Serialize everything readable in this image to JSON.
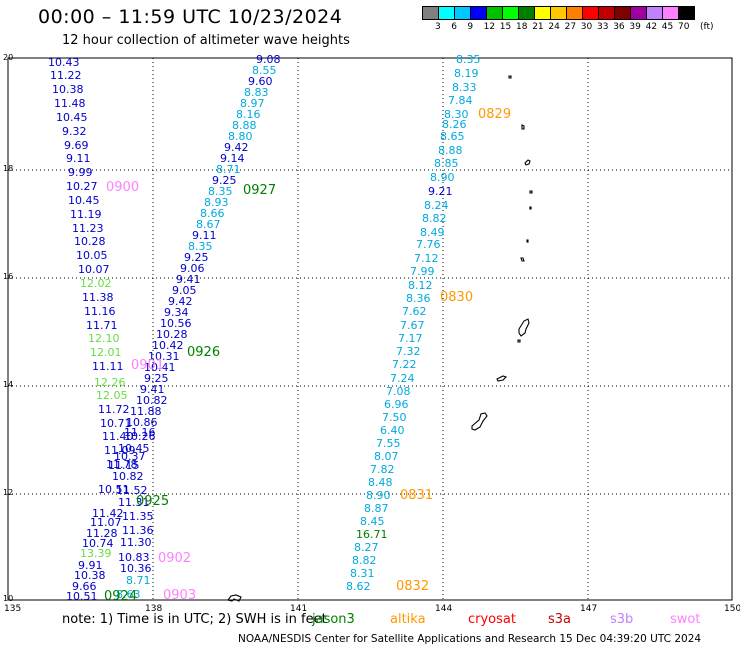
{
  "title": "00:00 – 11:59 UTC 10/23/2024",
  "subtitle": "12 hour collection of altimeter wave heights",
  "scale": {
    "unit": "(ft)",
    "colors": [
      "#808080",
      "#00ffff",
      "#00c8ff",
      "#0000ff",
      "#00c000",
      "#00ff00",
      "#008000",
      "#ffff00",
      "#ffc800",
      "#ff8000",
      "#ff0000",
      "#c00000",
      "#800000",
      "#a000a0",
      "#c080ff",
      "#ff80ff",
      "#000000"
    ],
    "labels": [
      "3",
      "6",
      "9",
      "12",
      "15",
      "18",
      "21",
      "24",
      "27",
      "30",
      "33",
      "36",
      "39",
      "42",
      "45",
      "70"
    ]
  },
  "axes": {
    "lon": [
      "135",
      "138",
      "141",
      "144",
      "147",
      "150"
    ],
    "lat": [
      "20",
      "18",
      "16",
      "14",
      "12",
      "10"
    ]
  },
  "legend": {
    "note": "note:  1) Time is in UTC;  2) SWH is in feet",
    "satellites": [
      {
        "name": "jason3",
        "color": "#008000"
      },
      {
        "name": "altika",
        "color": "#ff9900"
      },
      {
        "name": "cryosat",
        "color": "#ff0000"
      },
      {
        "name": "s3a",
        "color": "#c00000"
      },
      {
        "name": "s3b",
        "color": "#c080ff"
      },
      {
        "name": "swot",
        "color": "#ff80ff"
      }
    ]
  },
  "credit": "NOAA/NESDIS Center for Satellite Applications and Research    15 Dec 04:39:20 UTC 2024",
  "tracks": [
    {
      "name": "track-left",
      "items": [
        [
          "10.43",
          48,
          66,
          "#0000cc"
        ],
        [
          "11.22",
          50,
          79,
          "#0000cc"
        ],
        [
          "10.38",
          52,
          93,
          "#0000cc"
        ],
        [
          "11.48",
          54,
          107,
          "#0000cc"
        ],
        [
          "10.45",
          56,
          121,
          "#0000cc"
        ],
        [
          "9.32",
          62,
          135,
          "#0000cc"
        ],
        [
          "9.69",
          64,
          149,
          "#0000cc"
        ],
        [
          "9.11",
          66,
          162,
          "#0000cc"
        ],
        [
          "9.99",
          68,
          176,
          "#0000cc"
        ],
        [
          "10.27",
          66,
          190,
          "#0000cc"
        ],
        [
          "10.45",
          68,
          204,
          "#0000cc"
        ],
        [
          "11.19",
          70,
          218,
          "#0000cc"
        ],
        [
          "11.23",
          72,
          232,
          "#0000cc"
        ],
        [
          "10.28",
          74,
          245,
          "#0000cc"
        ],
        [
          "10.05",
          76,
          259,
          "#0000cc"
        ],
        [
          "10.07",
          78,
          273,
          "#0000cc"
        ],
        [
          "12.02",
          80,
          287,
          "#66dd44"
        ],
        [
          "11.38",
          82,
          301,
          "#0000cc"
        ],
        [
          "11.16",
          84,
          315,
          "#0000cc"
        ],
        [
          "11.71",
          86,
          329,
          "#0000cc"
        ],
        [
          "12.10",
          88,
          342,
          "#66dd44"
        ],
        [
          "12.01",
          90,
          356,
          "#66dd44"
        ],
        [
          "11.11",
          92,
          370,
          "#0000cc"
        ],
        [
          "12.26",
          94,
          386,
          "#66dd44"
        ],
        [
          "12.05",
          96,
          399,
          "#66dd44"
        ],
        [
          "11.72",
          98,
          413,
          "#0000cc"
        ],
        [
          "10.71",
          100,
          427,
          "#0000cc"
        ],
        [
          "11.40",
          102,
          440,
          "#0000cc"
        ],
        [
          "11.09",
          104,
          454,
          "#0000cc"
        ],
        [
          "11.78",
          106,
          468,
          "#0000cc"
        ],
        [
          "10.51",
          98,
          493,
          "#0000cc"
        ],
        [
          "11.42",
          92,
          517,
          "#0000cc"
        ],
        [
          "11.07",
          90,
          526,
          "#0000cc"
        ],
        [
          "11.28",
          86,
          537,
          "#0000cc"
        ],
        [
          "10.74",
          82,
          547,
          "#0000cc"
        ],
        [
          "13.39",
          80,
          557,
          "#66dd44"
        ],
        [
          "9.91",
          78,
          569,
          "#0000cc"
        ],
        [
          "10.38",
          74,
          579,
          "#0000cc"
        ],
        [
          "9.66",
          72,
          590,
          "#0000cc"
        ],
        [
          "10.51",
          66,
          600,
          "#0000cc"
        ]
      ]
    },
    {
      "name": "track-inner",
      "items": [
        [
          "10.26",
          124,
          440,
          "#0000cc"
        ],
        [
          "10.45",
          118,
          452,
          "#0000cc"
        ],
        [
          "10.37",
          114,
          460,
          "#0000cc"
        ],
        [
          "11.15",
          108,
          469,
          "#0000cc"
        ],
        [
          "10.82",
          112,
          480,
          "#0000cc"
        ],
        [
          "11.52",
          116,
          494,
          "#0000cc"
        ],
        [
          "11.31",
          118,
          506,
          "#0000cc"
        ],
        [
          "11.35",
          122,
          520,
          "#0000cc"
        ],
        [
          "11.36",
          122,
          534,
          "#0000cc"
        ],
        [
          "11.30",
          120,
          546,
          "#0000cc"
        ],
        [
          "10.83",
          118,
          561,
          "#0000cc"
        ],
        [
          "10.36",
          120,
          572,
          "#0000cc"
        ],
        [
          "8.71",
          126,
          584,
          "#00aadd"
        ],
        [
          "8.63",
          116,
          598,
          "#00aadd"
        ]
      ]
    },
    {
      "name": "track-diagonal",
      "items": [
        [
          "9.08",
          256,
          63,
          "#0000cc"
        ],
        [
          "8.55",
          252,
          74,
          "#00aadd"
        ],
        [
          "9.60",
          248,
          85,
          "#0000cc"
        ],
        [
          "8.83",
          244,
          96,
          "#00aadd"
        ],
        [
          "8.97",
          240,
          107,
          "#00aadd"
        ],
        [
          "8.16",
          236,
          118,
          "#00aadd"
        ],
        [
          "8.88",
          232,
          129,
          "#00aadd"
        ],
        [
          "8.80",
          228,
          140,
          "#00aadd"
        ],
        [
          "9.42",
          224,
          151,
          "#0000cc"
        ],
        [
          "9.14",
          220,
          162,
          "#0000cc"
        ],
        [
          "8.71",
          216,
          173,
          "#00aadd"
        ],
        [
          "9.25",
          212,
          184,
          "#0000cc"
        ],
        [
          "8.35",
          208,
          195,
          "#00aadd"
        ],
        [
          "8.93",
          204,
          206,
          "#00aadd"
        ],
        [
          "8.66",
          200,
          217,
          "#00aadd"
        ],
        [
          "8.67",
          196,
          228,
          "#00aadd"
        ],
        [
          "9.11",
          192,
          239,
          "#0000cc"
        ],
        [
          "8.35",
          188,
          250,
          "#00aadd"
        ],
        [
          "9.25",
          184,
          261,
          "#0000cc"
        ],
        [
          "9.06",
          180,
          272,
          "#0000cc"
        ],
        [
          "9.41",
          176,
          283,
          "#0000cc"
        ],
        [
          "9.05",
          172,
          294,
          "#0000cc"
        ],
        [
          "9.42",
          168,
          305,
          "#0000cc"
        ],
        [
          "9.34",
          164,
          316,
          "#0000cc"
        ],
        [
          "10.56",
          160,
          327,
          "#0000cc"
        ],
        [
          "10.28",
          156,
          338,
          "#0000cc"
        ],
        [
          "10.42",
          152,
          349,
          "#0000cc"
        ],
        [
          "10.31",
          148,
          360,
          "#0000cc"
        ],
        [
          "10.41",
          144,
          371,
          "#0000cc"
        ],
        [
          "9.25",
          144,
          382,
          "#0000cc"
        ],
        [
          "9.41",
          140,
          393,
          "#0000cc"
        ],
        [
          "10.82",
          136,
          404,
          "#0000cc"
        ],
        [
          "11.88",
          130,
          415,
          "#0000cc"
        ],
        [
          "10.86",
          126,
          426,
          "#0000cc"
        ],
        [
          "11.16",
          124,
          436,
          "#0000cc"
        ]
      ]
    },
    {
      "name": "track-right",
      "items": [
        [
          "8.35",
          456,
          63,
          "#00aadd"
        ],
        [
          "8.19",
          454,
          77,
          "#00aadd"
        ],
        [
          "8.33",
          452,
          91,
          "#00aadd"
        ],
        [
          "7.84",
          448,
          104,
          "#00aadd"
        ],
        [
          "8.30",
          444,
          118,
          "#00aadd"
        ],
        [
          "8.26",
          442,
          128,
          "#00aadd"
        ],
        [
          "8.65",
          440,
          140,
          "#00aadd"
        ],
        [
          "8.88",
          438,
          154,
          "#00aadd"
        ],
        [
          "8.85",
          434,
          167,
          "#00aadd"
        ],
        [
          "8.90",
          430,
          181,
          "#00aadd"
        ],
        [
          "9.21",
          428,
          195,
          "#0000cc"
        ],
        [
          "8.24",
          424,
          209,
          "#00aadd"
        ],
        [
          "8.82",
          422,
          222,
          "#00aadd"
        ],
        [
          "8.49",
          420,
          236,
          "#00aadd"
        ],
        [
          "7.76",
          416,
          248,
          "#00aadd"
        ],
        [
          "7.12",
          414,
          262,
          "#00aadd"
        ],
        [
          "7.99",
          410,
          275,
          "#00aadd"
        ],
        [
          "8.12",
          408,
          289,
          "#00aadd"
        ],
        [
          "8.36",
          406,
          302,
          "#00aadd"
        ],
        [
          "7.62",
          402,
          315,
          "#00aadd"
        ],
        [
          "7.67",
          400,
          329,
          "#00aadd"
        ],
        [
          "7.17",
          398,
          342,
          "#00aadd"
        ],
        [
          "7.32",
          396,
          355,
          "#00aadd"
        ],
        [
          "7.22",
          392,
          368,
          "#00aadd"
        ],
        [
          "7.24",
          390,
          382,
          "#00aadd"
        ],
        [
          "7.08",
          386,
          395,
          "#00aadd"
        ],
        [
          "6.96",
          384,
          408,
          "#00aadd"
        ],
        [
          "7.50",
          382,
          421,
          "#00aadd"
        ],
        [
          "6.40",
          380,
          434,
          "#00aadd"
        ],
        [
          "7.55",
          376,
          447,
          "#00aadd"
        ],
        [
          "8.07",
          374,
          460,
          "#00aadd"
        ],
        [
          "7.82",
          370,
          473,
          "#00aadd"
        ],
        [
          "8.48",
          368,
          486,
          "#00aadd"
        ],
        [
          "8.90",
          366,
          499,
          "#00aadd"
        ],
        [
          "8.87",
          364,
          512,
          "#00aadd"
        ],
        [
          "8.45",
          360,
          525,
          "#00aadd"
        ],
        [
          "16.71",
          356,
          538,
          "#008000"
        ],
        [
          "8.27",
          354,
          551,
          "#00aadd"
        ],
        [
          "8.82",
          352,
          564,
          "#00aadd"
        ],
        [
          "8.31",
          350,
          577,
          "#00aadd"
        ],
        [
          "8.62",
          346,
          590,
          "#00aadd"
        ]
      ]
    }
  ],
  "time_labels": [
    [
      "0829",
      478,
      118,
      "#ff9900"
    ],
    [
      "0900",
      106,
      191,
      "#ff80ff"
    ],
    [
      "0927",
      243,
      194,
      "#008000"
    ],
    [
      "0830",
      440,
      301,
      "#ff9900"
    ],
    [
      "0926",
      187,
      356,
      "#008000"
    ],
    [
      "0901",
      131,
      369,
      "#ff80ff"
    ],
    [
      "0831",
      400,
      499,
      "#ff9900"
    ],
    [
      "0925",
      136,
      505,
      "#008000"
    ],
    [
      "0902",
      158,
      562,
      "#ff80ff"
    ],
    [
      "0832",
      396,
      590,
      "#ff9900"
    ],
    [
      "0924",
      104,
      600,
      "#008000"
    ],
    [
      "0903",
      163,
      599,
      "#ff80ff"
    ]
  ]
}
